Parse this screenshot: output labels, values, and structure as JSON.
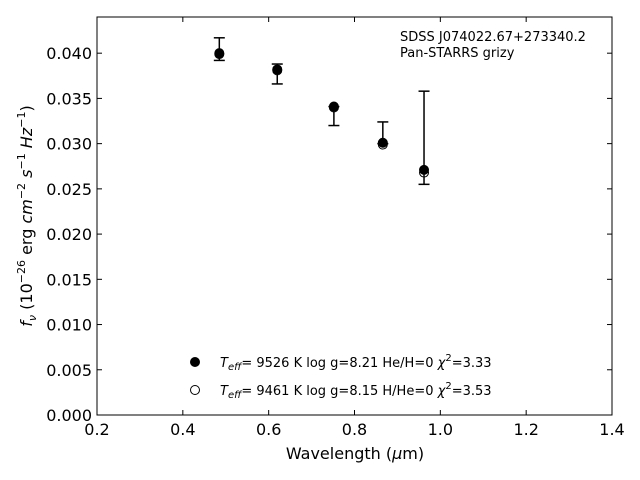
{
  "chart_data": {
    "type": "scatter",
    "title": "",
    "annotations": [
      "SDSS J074022.67+273340.2",
      "Pan-STARRS grizy"
    ],
    "xlabel": "Wavelength (μm)",
    "ylabel": "f_ν (10^-26 erg cm^-2 s^-1 Hz^-1)",
    "xlim": [
      0.2,
      1.4
    ],
    "ylim": [
      0.0,
      0.044
    ],
    "xticks": [
      0.2,
      0.4,
      0.6,
      0.8,
      1.0,
      1.2,
      1.4
    ],
    "xtick_labels": [
      "0.2",
      "0.4",
      "0.6",
      "0.8",
      "1.0",
      "1.2",
      "1.4"
    ],
    "yticks": [
      0.0,
      0.005,
      0.01,
      0.015,
      0.02,
      0.025,
      0.03,
      0.035,
      0.04
    ],
    "ytick_labels": [
      "0.000",
      "0.005",
      "0.010",
      "0.015",
      "0.020",
      "0.025",
      "0.030",
      "0.035",
      "0.040"
    ],
    "grid": false,
    "legend_position": "bottom-center",
    "observed": {
      "x": [
        0.485,
        0.62,
        0.752,
        0.866,
        0.962
      ],
      "y": [
        0.0398,
        0.0381,
        0.0337,
        0.0303,
        0.0272
      ],
      "yerr_low": [
        0.0006,
        0.0015,
        0.0017,
        0.0003,
        0.0017
      ],
      "yerr_high": [
        0.0019,
        0.0007,
        0.0004,
        0.0021,
        0.0086
      ]
    },
    "series": [
      {
        "label": "T_eff= 9526 K log g=8.21 He/H=0 χ²=3.33",
        "legend_text": "=  9526 K  log g=8.21  He/H=0  ",
        "chi_label": "=3.33",
        "marker": "filled-circle",
        "x": [
          0.485,
          0.62,
          0.752,
          0.866,
          0.962
        ],
        "y": [
          0.04,
          0.0382,
          0.0341,
          0.0301,
          0.0271
        ]
      },
      {
        "label": "T_eff= 9461 K log g=8.15 H/He=0 χ²=3.53",
        "legend_text": "=  9461 K  log g=8.15  H/He=0  ",
        "chi_label": "=3.53",
        "marker": "open-circle",
        "x": [
          0.485,
          0.62,
          0.752,
          0.866,
          0.962
        ],
        "y": [
          0.0399,
          0.0381,
          0.034,
          0.0299,
          0.0268
        ]
      }
    ],
    "colors": {
      "axes": "#000000",
      "background": "#ffffff"
    }
  }
}
